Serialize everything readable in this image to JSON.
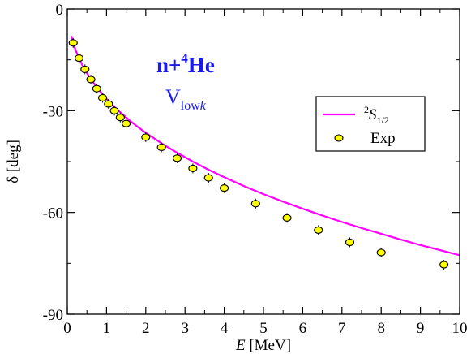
{
  "chart_data": {
    "type": "scatter",
    "ylabel": "δ [deg]",
    "xlabel_italic": "E",
    "xlabel_rest": " [MeV]",
    "xlim": [
      0,
      10
    ],
    "ylim": [
      -90,
      0
    ],
    "x_ticks": [
      0,
      1,
      2,
      3,
      4,
      5,
      6,
      7,
      8,
      9,
      10
    ],
    "x_tick_labels": [
      "0",
      "1",
      "2",
      "3",
      "4",
      "5",
      "6",
      "7",
      "8",
      "9",
      "10"
    ],
    "y_ticks": [
      0,
      -30,
      -60,
      -90
    ],
    "y_tick_labels": [
      "0",
      "-30",
      "-60",
      "-90"
    ],
    "grid": false,
    "legend_position": "right",
    "annotations": {
      "reaction_base": "n+",
      "reaction_sup": "4",
      "reaction_end": "He",
      "potential_main": "V",
      "potential_sub": "low",
      "potential_sub_italic": "k"
    },
    "series": [
      {
        "label_sup": "2",
        "label_main": "S",
        "label_sub": "1/2",
        "kind": "line",
        "color": "#ff00ff",
        "x": [
          0.1,
          0.2,
          0.3,
          0.4,
          0.5,
          0.6,
          0.8,
          1.0,
          1.2,
          1.4,
          1.6,
          1.8,
          2.0,
          2.4,
          2.8,
          3.2,
          3.6,
          4.0,
          4.5,
          5.0,
          5.5,
          6.0,
          6.5,
          7.0,
          7.5,
          8.0,
          8.5,
          9.0,
          9.5,
          10.0
        ],
        "y": [
          -8.0,
          -11.8,
          -14.6,
          -16.9,
          -18.9,
          -20.7,
          -23.8,
          -26.5,
          -28.9,
          -31.0,
          -33.0,
          -34.8,
          -36.5,
          -39.6,
          -42.4,
          -45.0,
          -47.4,
          -49.6,
          -52.2,
          -54.6,
          -56.8,
          -58.9,
          -60.9,
          -62.8,
          -64.6,
          -66.3,
          -68.0,
          -69.6,
          -71.1,
          -72.6
        ]
      },
      {
        "label": "Exp",
        "kind": "points",
        "color": "#ffff00",
        "edge_color": "#000000",
        "x": [
          0.15,
          0.3,
          0.45,
          0.6,
          0.75,
          0.9,
          1.05,
          1.2,
          1.35,
          1.5,
          2.0,
          2.4,
          2.8,
          3.2,
          3.6,
          4.0,
          4.8,
          5.6,
          6.4,
          7.2,
          8.0,
          9.6
        ],
        "y": [
          -10.0,
          -14.5,
          -17.8,
          -20.8,
          -23.5,
          -26.2,
          -28.0,
          -30.0,
          -32.0,
          -33.8,
          -37.8,
          -40.8,
          -44.0,
          -47.0,
          -49.8,
          -52.8,
          -57.4,
          -61.6,
          -65.2,
          -68.8,
          -71.8,
          -75.4
        ]
      }
    ]
  }
}
